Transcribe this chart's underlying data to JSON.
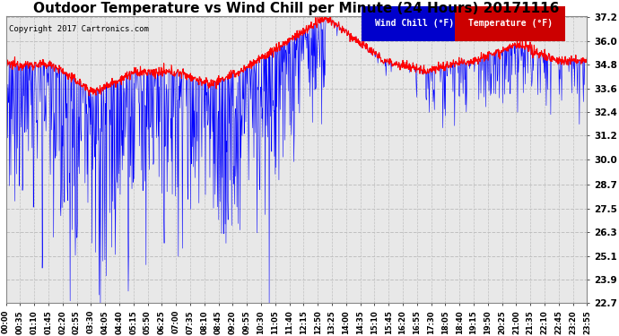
{
  "title": "Outdoor Temperature vs Wind Chill per Minute (24 Hours) 20171116",
  "copyright": "Copyright 2017 Cartronics.com",
  "legend_wc": "Wind Chill (°F)",
  "legend_temp": "Temperature (°F)",
  "color_wc": "blue",
  "color_temp": "red",
  "background_color": "#ffffff",
  "plot_bg": "#e8e8e8",
  "grid_color": "#c0c0c0",
  "title_fontsize": 11,
  "ylim_min": 22.7,
  "ylim_max": 37.2,
  "yticks": [
    22.7,
    23.9,
    25.1,
    26.3,
    27.5,
    28.7,
    30.0,
    31.2,
    32.4,
    33.6,
    34.8,
    36.0,
    37.2
  ],
  "xtick_labels": [
    "00:00",
    "00:35",
    "01:10",
    "01:45",
    "02:20",
    "02:55",
    "03:30",
    "04:05",
    "04:40",
    "05:15",
    "05:50",
    "06:25",
    "07:00",
    "07:35",
    "08:10",
    "08:45",
    "09:20",
    "09:55",
    "10:30",
    "11:05",
    "11:40",
    "12:15",
    "12:50",
    "13:25",
    "14:00",
    "14:35",
    "15:10",
    "15:45",
    "16:20",
    "16:55",
    "17:30",
    "18:05",
    "18:40",
    "19:15",
    "19:50",
    "20:25",
    "21:00",
    "21:35",
    "22:10",
    "22:45",
    "23:20",
    "23:55"
  ],
  "n_points": 1440
}
